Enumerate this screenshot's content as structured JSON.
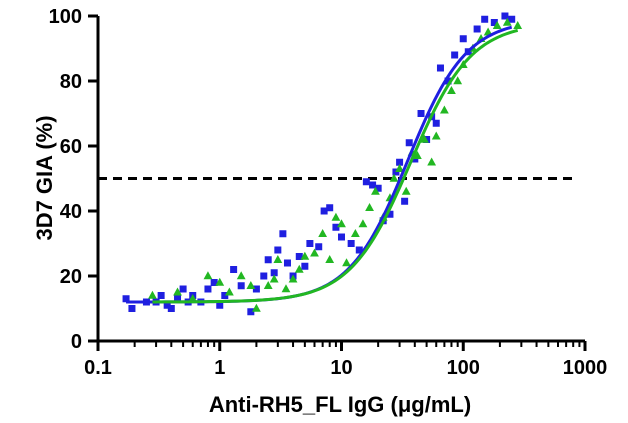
{
  "chart_data": {
    "type": "scatter",
    "title": "",
    "xlabel": "Anti-RH5_FL IgG (μg/mL)",
    "ylabel": "3D7 GIA (%)",
    "x_scale": "log10",
    "xlim": [
      0.1,
      1000
    ],
    "ylim": [
      0,
      100
    ],
    "x_ticks": [
      0.1,
      1,
      10,
      100,
      1000
    ],
    "x_tick_labels": [
      "0.1",
      "1",
      "10",
      "100",
      "1000"
    ],
    "y_ticks": [
      0,
      20,
      40,
      60,
      80,
      100
    ],
    "y_tick_labels": [
      "0",
      "20",
      "40",
      "60",
      "80",
      "100"
    ],
    "grid": false,
    "reference_line": {
      "y": 50,
      "style": "dashed",
      "color": "#000000"
    },
    "series": [
      {
        "marker": "square",
        "color": "#1f1fe0",
        "fit_curve": {
          "bottom": 12,
          "top": 99,
          "ec50": 35,
          "hill": 1.8,
          "color": "#1f1fe0"
        },
        "points": [
          [
            0.17,
            13
          ],
          [
            0.19,
            10
          ],
          [
            0.25,
            12
          ],
          [
            0.3,
            12
          ],
          [
            0.33,
            14
          ],
          [
            0.37,
            11
          ],
          [
            0.4,
            10
          ],
          [
            0.45,
            13
          ],
          [
            0.5,
            16
          ],
          [
            0.55,
            12
          ],
          [
            0.6,
            14
          ],
          [
            0.7,
            12
          ],
          [
            0.8,
            16
          ],
          [
            0.9,
            18
          ],
          [
            1.0,
            11
          ],
          [
            1.1,
            14
          ],
          [
            1.3,
            22
          ],
          [
            1.5,
            17
          ],
          [
            1.8,
            9
          ],
          [
            2.0,
            16
          ],
          [
            2.3,
            20
          ],
          [
            2.5,
            25
          ],
          [
            2.8,
            21
          ],
          [
            3.0,
            28
          ],
          [
            3.3,
            33
          ],
          [
            3.6,
            24
          ],
          [
            4.0,
            20
          ],
          [
            4.5,
            26
          ],
          [
            5.0,
            23
          ],
          [
            5.5,
            30
          ],
          [
            6.5,
            29
          ],
          [
            7.2,
            40
          ],
          [
            8.0,
            41
          ],
          [
            9.0,
            35
          ],
          [
            10.0,
            32
          ],
          [
            12,
            30
          ],
          [
            14,
            28
          ],
          [
            16,
            49
          ],
          [
            18,
            48
          ],
          [
            20,
            47
          ],
          [
            22,
            37
          ],
          [
            25,
            39
          ],
          [
            28,
            52
          ],
          [
            30,
            55
          ],
          [
            33,
            43
          ],
          [
            36,
            61
          ],
          [
            40,
            56
          ],
          [
            45,
            70
          ],
          [
            50,
            62
          ],
          [
            55,
            69
          ],
          [
            60,
            67
          ],
          [
            65,
            84
          ],
          [
            75,
            80
          ],
          [
            85,
            88
          ],
          [
            100,
            93
          ],
          [
            110,
            89
          ],
          [
            130,
            96
          ],
          [
            150,
            99
          ],
          [
            180,
            98
          ],
          [
            220,
            100
          ],
          [
            250,
            99
          ]
        ]
      },
      {
        "marker": "triangle",
        "color": "#22b722",
        "fit_curve": {
          "bottom": 12,
          "top": 98,
          "ec50": 37,
          "hill": 1.75,
          "color": "#22b722"
        },
        "points": [
          [
            0.28,
            14
          ],
          [
            0.45,
            15
          ],
          [
            0.6,
            13
          ],
          [
            0.8,
            20
          ],
          [
            1.0,
            18
          ],
          [
            1.2,
            15
          ],
          [
            1.5,
            20
          ],
          [
            1.8,
            17
          ],
          [
            2.0,
            10
          ],
          [
            2.5,
            17
          ],
          [
            2.8,
            19
          ],
          [
            3.0,
            25
          ],
          [
            3.5,
            16
          ],
          [
            4.0,
            19
          ],
          [
            4.5,
            22
          ],
          [
            5.0,
            26
          ],
          [
            6.0,
            27
          ],
          [
            7.0,
            33
          ],
          [
            8.0,
            25
          ],
          [
            9.0,
            38
          ],
          [
            10,
            36
          ],
          [
            11,
            24
          ],
          [
            13,
            33
          ],
          [
            15,
            36
          ],
          [
            17,
            41
          ],
          [
            19,
            46
          ],
          [
            22,
            38
          ],
          [
            25,
            44
          ],
          [
            27,
            50
          ],
          [
            30,
            53
          ],
          [
            34,
            46
          ],
          [
            38,
            58
          ],
          [
            42,
            57
          ],
          [
            48,
            62
          ],
          [
            55,
            55
          ],
          [
            60,
            63
          ],
          [
            70,
            71
          ],
          [
            80,
            77
          ],
          [
            90,
            80
          ],
          [
            100,
            85
          ],
          [
            120,
            90
          ],
          [
            140,
            93
          ],
          [
            160,
            95
          ],
          [
            190,
            97
          ],
          [
            230,
            98
          ],
          [
            280,
            97
          ]
        ]
      }
    ]
  }
}
